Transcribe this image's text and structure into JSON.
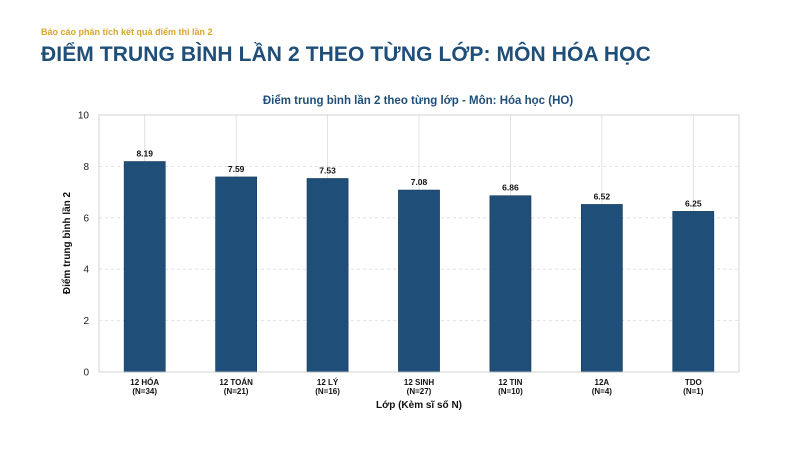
{
  "header": {
    "kicker": "Báo cáo phân tích kết quả điểm thi lần 2",
    "title": "ĐIỂM TRUNG BÌNH LẦN 2 THEO TỪNG LỚP: MÔN HÓA HỌC"
  },
  "colors": {
    "bar": "#1f4e79",
    "title": "#1f4e79",
    "kicker": "#d8a62a"
  },
  "chart_data": {
    "type": "bar",
    "title": "Điểm trung bình lần 2 theo từng lớp - Môn: Hóa học (HO)",
    "xlabel": "Lớp (Kèm sĩ số N)",
    "ylabel": "Điểm trung bình lần 2",
    "ylim": [
      0,
      10
    ],
    "yticks": [
      0,
      2,
      4,
      6,
      8,
      10
    ],
    "grid": true,
    "categories": [
      "12 HÓA",
      "12 TOÁN",
      "12 LÝ",
      "12 SINH",
      "12 TIN",
      "12A",
      "TDO"
    ],
    "counts": [
      "(N=34)",
      "(N=21)",
      "(N=16)",
      "(N=27)",
      "(N=10)",
      "(N=4)",
      "(N=1)"
    ],
    "values": [
      8.19,
      7.59,
      7.53,
      7.08,
      6.86,
      6.52,
      6.25
    ],
    "value_labels": [
      "8.19",
      "7.59",
      "7.53",
      "7.08",
      "6.86",
      "6.52",
      "6.25"
    ]
  }
}
